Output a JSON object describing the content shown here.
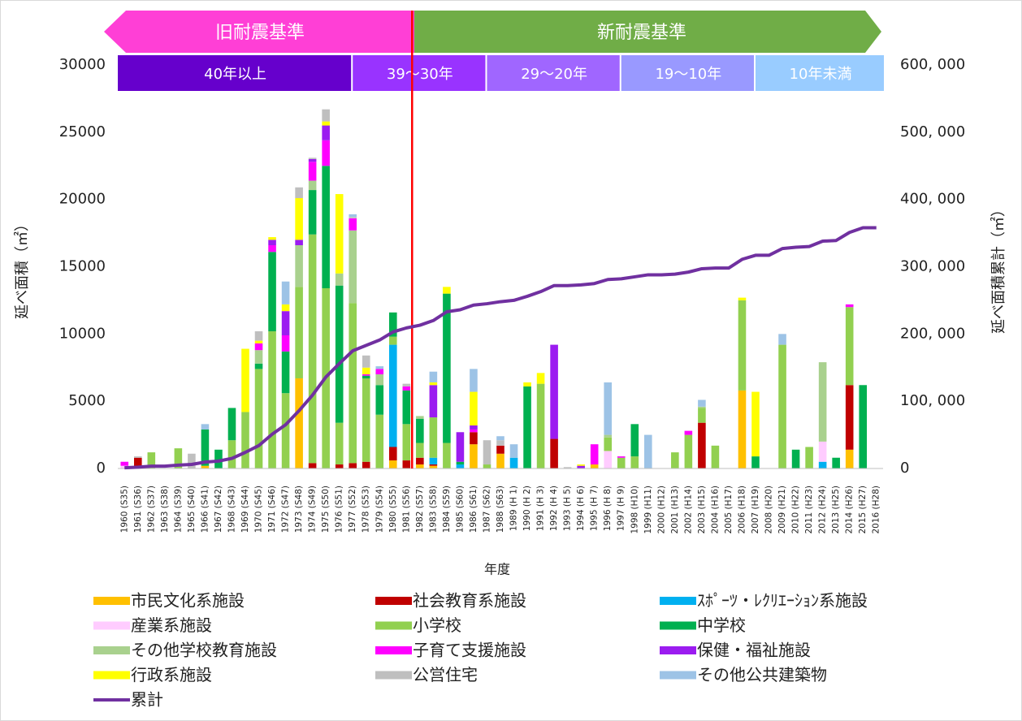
{
  "chart_data": {
    "type": "bar",
    "stacked": true,
    "era_labels": [
      "旧耐震基準",
      "新耐震基準"
    ],
    "period_labels": [
      "40年以上",
      "39～30年",
      "29～20年",
      "19～10年",
      "10年未満"
    ],
    "ylabel": "延べ面積（㎡）",
    "y2label": "延べ面積累計（㎡）",
    "xlabel": "年度",
    "ylim": [
      0,
      30000
    ],
    "yticks": [
      0,
      5000,
      10000,
      15000,
      20000,
      25000,
      30000
    ],
    "y2lim": [
      0,
      600000
    ],
    "y2ticks": [
      0,
      {
        "value": 100000,
        "label": "100, 000"
      },
      {
        "value": 200000,
        "label": "200, 000"
      },
      {
        "value": 300000,
        "label": "300, 000"
      },
      {
        "value": 400000,
        "label": "400, 000"
      },
      {
        "value": 500000,
        "label": "500, 000"
      },
      {
        "value": 600000,
        "label": "600, 000"
      }
    ],
    "categories": [
      "1960 (S35)",
      "1961 (S36)",
      "1962 (S37)",
      "1963 (S38)",
      "1964 (S39)",
      "1965 (S40)",
      "1966 (S41)",
      "1967 (S42)",
      "1968 (S43)",
      "1969 (S44)",
      "1970 (S45)",
      "1971 (S46)",
      "1972 (S47)",
      "1973 (S48)",
      "1974 (S49)",
      "1975 (S50)",
      "1976 (S51)",
      "1977 (S52)",
      "1978 (S53)",
      "1979 (S54)",
      "1980 (S55)",
      "1981 (S56)",
      "1982 (S57)",
      "1983 (S58)",
      "1984 (S59)",
      "1985 (S60)",
      "1986 (S61)",
      "1987 (S62)",
      "1988 (S63)",
      "1989 (H 1)",
      "1990 (H 2)",
      "1991 (H 3)",
      "1992 (H 4)",
      "1993 (H 5)",
      "1994 (H 6)",
      "1995 (H 7)",
      "1996 (H 8)",
      "1997 (H 9)",
      "1998 (H10)",
      "1999 (H11)",
      "2000 (H12)",
      "2001 (H13)",
      "2002 (H14)",
      "2003 (H15)",
      "2004 (H16)",
      "2005 (H17)",
      "2006 (H18)",
      "2007 (H19)",
      "2008 (H20)",
      "2009 (H21)",
      "2010 (H22)",
      "2011 (H23)",
      "2012 (H24)",
      "2013 (H25)",
      "2014 (H26)",
      "2015 (H27)",
      "2016 (H28)"
    ],
    "series": [
      {
        "name": "市民文化系施設",
        "color": "#ffc000",
        "values": [
          0,
          0,
          0,
          0,
          0,
          0,
          200,
          0,
          0,
          0,
          0,
          0,
          0,
          6700,
          0,
          0,
          0,
          0,
          0,
          0,
          600,
          0,
          300,
          200,
          0,
          0,
          1800,
          0,
          1100,
          0,
          0,
          0,
          0,
          0,
          0,
          300,
          0,
          0,
          0,
          0,
          0,
          0,
          0,
          0,
          0,
          0,
          5800,
          0,
          0,
          0,
          0,
          0,
          0,
          0,
          1400,
          0,
          0
        ]
      },
      {
        "name": "社会教育系施設",
        "color": "#c00000",
        "values": [
          0,
          800,
          0,
          0,
          0,
          0,
          0,
          0,
          0,
          0,
          0,
          0,
          0,
          0,
          400,
          0,
          300,
          400,
          500,
          0,
          1000,
          600,
          500,
          100,
          0,
          0,
          900,
          0,
          600,
          0,
          0,
          0,
          2200,
          0,
          0,
          0,
          0,
          0,
          0,
          0,
          0,
          0,
          0,
          3400,
          0,
          0,
          0,
          0,
          0,
          0,
          0,
          0,
          0,
          0,
          4800,
          0,
          0
        ]
      },
      {
        "name": "ｽﾎﾟｰﾂ・ﾚｸﾘｴｰｼｮﾝ系施設",
        "color": "#00b0f0",
        "values": [
          0,
          0,
          0,
          0,
          0,
          0,
          0,
          0,
          0,
          0,
          0,
          0,
          0,
          0,
          0,
          0,
          0,
          0,
          0,
          0,
          7600,
          0,
          0,
          500,
          0,
          300,
          0,
          0,
          0,
          800,
          0,
          0,
          0,
          0,
          0,
          0,
          0,
          0,
          0,
          0,
          0,
          0,
          0,
          0,
          0,
          0,
          0,
          0,
          0,
          0,
          0,
          0,
          500,
          0,
          0,
          0,
          0
        ]
      },
      {
        "name": "産業系施設",
        "color": "#ffccff",
        "values": [
          200,
          0,
          0,
          0,
          0,
          0,
          0,
          0,
          0,
          0,
          0,
          0,
          0,
          0,
          0,
          0,
          0,
          0,
          0,
          0,
          0,
          0,
          0,
          0,
          0,
          0,
          0,
          0,
          0,
          0,
          0,
          0,
          0,
          0,
          0,
          0,
          1300,
          0,
          0,
          0,
          0,
          0,
          0,
          0,
          0,
          0,
          0,
          0,
          0,
          0,
          0,
          0,
          1500,
          0,
          0,
          0,
          0
        ]
      },
      {
        "name": "小学校",
        "color": "#92d050",
        "values": [
          0,
          0,
          1200,
          0,
          1500,
          0,
          0,
          0,
          2100,
          4200,
          7400,
          10200,
          5600,
          6800,
          17000,
          13400,
          3100,
          11900,
          6200,
          4000,
          600,
          2700,
          1100,
          3000,
          1900,
          0,
          0,
          300,
          0,
          0,
          0,
          6300,
          0,
          0,
          0,
          0,
          1000,
          800,
          900,
          0,
          0,
          1200,
          2500,
          1100,
          1700,
          0,
          6700,
          0,
          0,
          9200,
          0,
          1600,
          0,
          0,
          5800,
          0,
          0
        ]
      },
      {
        "name": "中学校",
        "color": "#00b050",
        "values": [
          0,
          0,
          0,
          0,
          0,
          0,
          2700,
          1400,
          2400,
          0,
          400,
          5900,
          3100,
          0,
          3300,
          9100,
          10200,
          0,
          200,
          2200,
          1800,
          2500,
          1800,
          0,
          11100,
          200,
          0,
          0,
          0,
          0,
          6100,
          0,
          0,
          0,
          0,
          0,
          0,
          0,
          2400,
          0,
          0,
          0,
          0,
          0,
          0,
          0,
          0,
          900,
          0,
          0,
          1400,
          0,
          0,
          800,
          0,
          6200,
          0
        ]
      },
      {
        "name": "その他学校教育施設",
        "color": "#a9d18e",
        "values": [
          0,
          0,
          0,
          0,
          0,
          0,
          0,
          0,
          0,
          0,
          1000,
          0,
          0,
          3100,
          700,
          0,
          900,
          5400,
          0,
          800,
          0,
          0,
          200,
          0,
          0,
          0,
          0,
          0,
          0,
          0,
          0,
          0,
          0,
          0,
          0,
          0,
          200,
          0,
          0,
          0,
          0,
          0,
          0,
          100,
          0,
          0,
          0,
          0,
          0,
          0,
          0,
          0,
          5900,
          0,
          0,
          0,
          0
        ]
      },
      {
        "name": "子育て支援施設",
        "color": "#ff00ff",
        "values": [
          300,
          0,
          0,
          0,
          0,
          0,
          0,
          0,
          0,
          0,
          500,
          500,
          1200,
          0,
          1400,
          1900,
          0,
          900,
          100,
          400,
          0,
          300,
          0,
          0,
          0,
          0,
          200,
          0,
          0,
          0,
          0,
          0,
          0,
          0,
          0,
          1500,
          0,
          100,
          0,
          0,
          0,
          0,
          300,
          0,
          0,
          0,
          0,
          0,
          0,
          0,
          0,
          0,
          0,
          0,
          200,
          0,
          0
        ]
      },
      {
        "name": "保健・福祉施設",
        "color": "#9b1cf0",
        "values": [
          0,
          0,
          0,
          0,
          0,
          0,
          0,
          0,
          0,
          0,
          0,
          400,
          1800,
          400,
          200,
          1100,
          0,
          0,
          0,
          0,
          0,
          0,
          0,
          2400,
          0,
          2200,
          300,
          0,
          0,
          0,
          0,
          0,
          7000,
          0,
          200,
          0,
          0,
          0,
          0,
          0,
          0,
          0,
          0,
          0,
          0,
          0,
          0,
          0,
          0,
          0,
          0,
          0,
          0,
          0,
          0,
          0,
          0
        ]
      },
      {
        "name": "行政系施設",
        "color": "#ffff00",
        "values": [
          0,
          0,
          0,
          0,
          0,
          0,
          0,
          0,
          0,
          4700,
          200,
          200,
          500,
          3100,
          0,
          300,
          5900,
          0,
          500,
          0,
          0,
          0,
          0,
          200,
          500,
          0,
          2500,
          0,
          0,
          0,
          300,
          800,
          0,
          0,
          100,
          0,
          0,
          0,
          0,
          0,
          0,
          0,
          0,
          0,
          0,
          0,
          200,
          4800,
          0,
          0,
          0,
          0,
          0,
          0,
          0,
          0,
          0
        ]
      },
      {
        "name": "公営住宅",
        "color": "#bfbfbf",
        "values": [
          0,
          100,
          0,
          0,
          0,
          1100,
          0,
          0,
          0,
          0,
          700,
          0,
          0,
          800,
          100,
          900,
          0,
          100,
          900,
          0,
          0,
          200,
          0,
          0,
          0,
          0,
          0,
          1800,
          400,
          0,
          0,
          0,
          0,
          100,
          0,
          0,
          0,
          0,
          0,
          0,
          0,
          0,
          0,
          0,
          0,
          0,
          0,
          0,
          0,
          0,
          0,
          0,
          0,
          0,
          0,
          0,
          0
        ]
      },
      {
        "name": "その他公共建築物",
        "color": "#9dc3e6",
        "values": [
          0,
          0,
          0,
          0,
          0,
          0,
          400,
          0,
          0,
          0,
          0,
          0,
          1700,
          0,
          0,
          0,
          0,
          200,
          0,
          200,
          0,
          0,
          0,
          800,
          0,
          0,
          1700,
          0,
          300,
          1000,
          0,
          0,
          0,
          0,
          0,
          0,
          3900,
          0,
          0,
          2500,
          0,
          0,
          0,
          500,
          0,
          0,
          0,
          0,
          0,
          800,
          0,
          0,
          0,
          0,
          0,
          0,
          0
        ]
      },
      {
        "name": "累計",
        "type": "line",
        "axis": "y2",
        "color": "#7030a0",
        "values": [
          1000,
          2000,
          3500,
          3500,
          5000,
          6000,
          9500,
          11000,
          15000,
          24000,
          34000,
          51000,
          65000,
          86000,
          109000,
          136000,
          156000,
          175000,
          183000,
          191000,
          203000,
          209000,
          213000,
          220000,
          233000,
          236000,
          243000,
          245000,
          248000,
          250000,
          256000,
          263000,
          272000,
          272000,
          273000,
          275000,
          281000,
          282000,
          285000,
          288000,
          288000,
          289000,
          292000,
          297000,
          298000,
          298000,
          311000,
          317000,
          317000,
          327000,
          329000,
          330000,
          338000,
          339000,
          351000,
          358000,
          358000
        ]
      }
    ]
  }
}
